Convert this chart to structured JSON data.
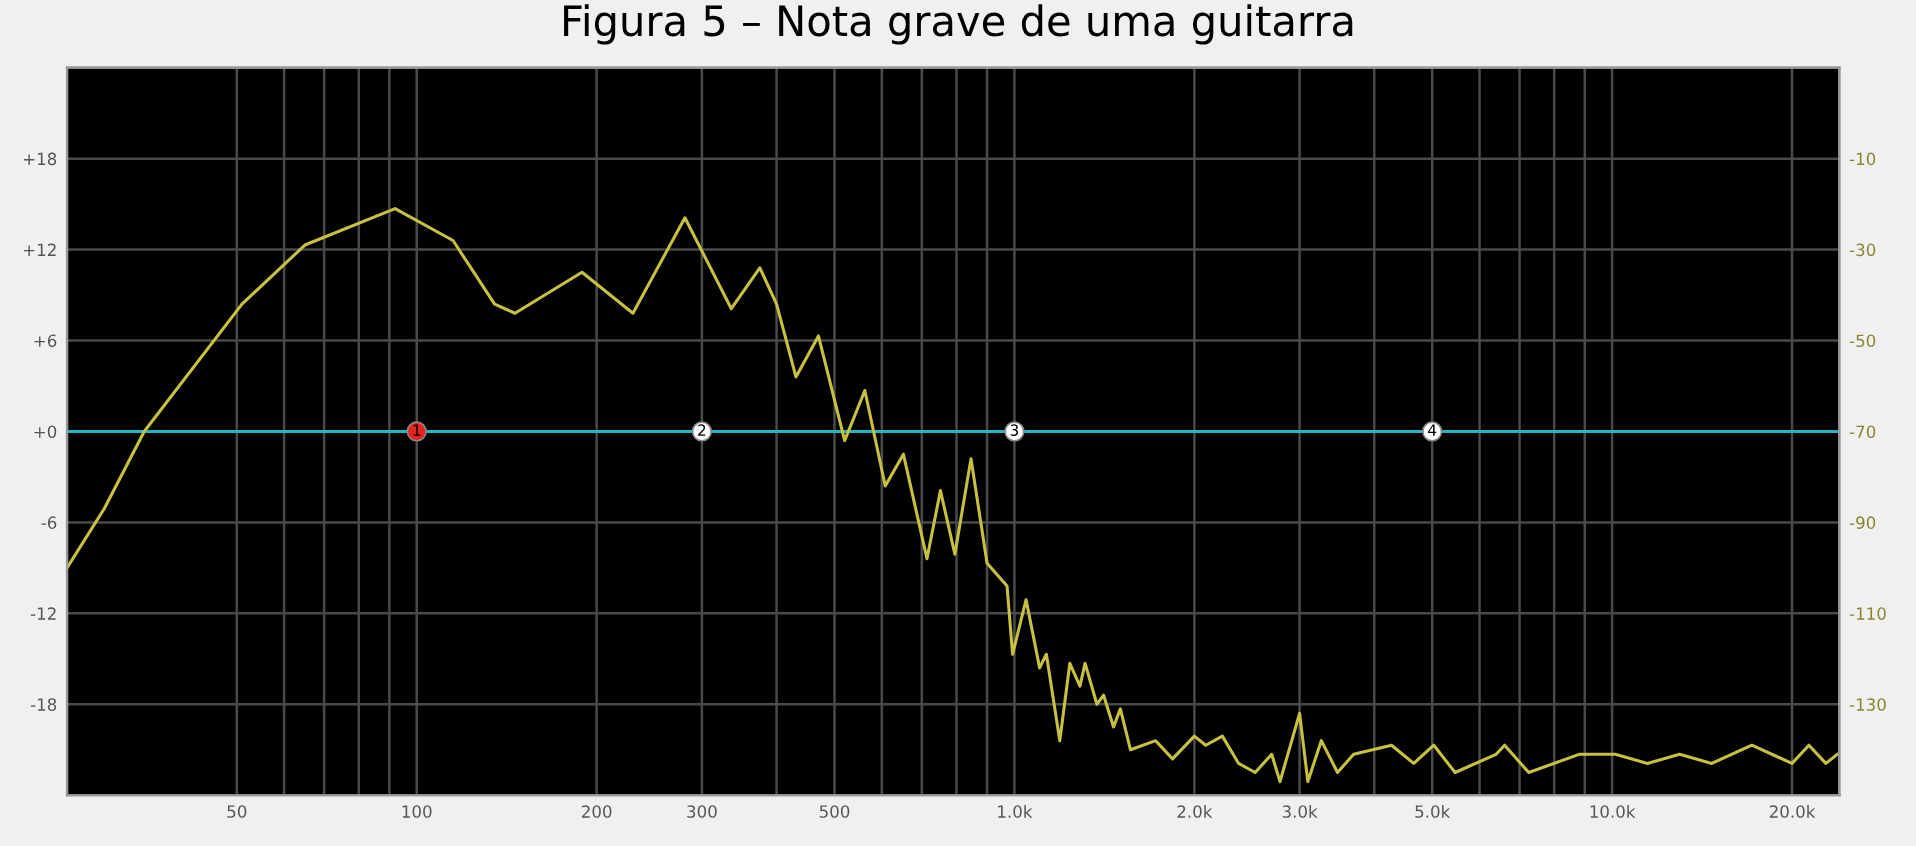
{
  "chart_data": {
    "type": "line",
    "title": "Figura 5 – Nota grave de uma guitarra",
    "log": "x",
    "grid": true,
    "annotations": [
      {
        "text": "1",
        "x": 100,
        "y": 0
      },
      {
        "text": "2",
        "x": 300,
        "y": 0
      },
      {
        "text": "3",
        "x": 1000,
        "y": 0
      },
      {
        "text": "4",
        "x": 5000,
        "y": 0
      }
    ],
    "xlim": [
      26,
      24000
    ],
    "xticks": [
      {
        "value": 50,
        "label": "50"
      },
      {
        "value": 60,
        "label": null
      },
      {
        "value": 70,
        "label": null
      },
      {
        "value": 80,
        "label": null
      },
      {
        "value": 90,
        "label": null
      },
      {
        "value": 100,
        "label": "100"
      },
      {
        "value": 200,
        "label": "200"
      },
      {
        "value": 300,
        "label": "300"
      },
      {
        "value": 400,
        "label": null
      },
      {
        "value": 500,
        "label": "500"
      },
      {
        "value": 600,
        "label": null
      },
      {
        "value": 700,
        "label": null
      },
      {
        "value": 800,
        "label": null
      },
      {
        "value": 900,
        "label": null
      },
      {
        "value": 1000,
        "label": "1.0k"
      },
      {
        "value": 2000,
        "label": "2.0k"
      },
      {
        "value": 3000,
        "label": "3.0k"
      },
      {
        "value": 4000,
        "label": null
      },
      {
        "value": 5000,
        "label": "5.0k"
      },
      {
        "value": 6000,
        "label": null
      },
      {
        "value": 7000,
        "label": null
      },
      {
        "value": 8000,
        "label": null
      },
      {
        "value": 9000,
        "label": null
      },
      {
        "value": 10000,
        "label": "10.0k"
      },
      {
        "value": 20000,
        "label": "20.0k"
      }
    ],
    "ylim": [
      -24,
      24
    ],
    "yticks": [
      {
        "value": 18,
        "label": "+18"
      },
      {
        "value": 12,
        "label": "+12"
      },
      {
        "value": 6,
        "label": "+6"
      },
      {
        "value": 0,
        "label": "+0"
      },
      -6,
      -12,
      -18
    ],
    "y2lim": [
      -150,
      10
    ],
    "y2ticks": [
      -10,
      -30,
      -50,
      -70,
      -90,
      -110,
      -130
    ],
    "series": [
      {
        "type": "line",
        "axis": "y2",
        "color": "#c8c040",
        "marker": "none",
        "x": [
          26,
          30,
          35,
          51,
          65,
          92,
          115,
          135,
          146,
          189,
          230,
          281,
          336,
          375,
          400,
          431,
          470,
          520,
          562,
          608,
          652,
          714,
          752,
          795,
          846,
          900,
          972,
          993,
          1046,
          1102,
          1131,
          1191,
          1238,
          1287,
          1313,
          1374,
          1410,
          1465,
          1504,
          1564,
          1723,
          1839,
          2000,
          2090,
          2228,
          2372,
          2528,
          2694,
          2782,
          3000,
          3097,
          3262,
          3472,
          3694,
          4275,
          4657,
          5031,
          5461,
          6395,
          6609,
          7254,
          8804,
          10124,
          11458,
          12968,
          14677,
          17134,
          20000,
          21343,
          22782,
          23800
        ],
        "values": [
          -100,
          -87,
          -70,
          -42,
          -29,
          -21,
          -28,
          -42,
          -44,
          -35,
          -44,
          -23,
          -43,
          -34,
          -42,
          -58,
          -49,
          -72,
          -61,
          -82,
          -75,
          -98,
          -83,
          -97,
          -76,
          -99,
          -104,
          -119,
          -107,
          -122,
          -119,
          -138,
          -121,
          -126,
          -121,
          -130,
          -128,
          -135,
          -131,
          -140,
          -138,
          -142,
          -137,
          -139,
          -137,
          -143,
          -145,
          -141,
          -147,
          -132,
          -147,
          -138,
          -145,
          -141,
          -139,
          -143,
          -139,
          -145,
          -141,
          -139,
          -145,
          -141,
          -141,
          -143,
          -141,
          -143,
          -139,
          -143,
          -139,
          -143,
          -141
        ]
      },
      {
        "color": "#20b8c4",
        "marker": "none",
        "x": [
          26,
          24000
        ],
        "values": [
          0,
          0
        ]
      },
      {
        "type": "scatter",
        "marker": "circle",
        "x": [
          100,
          300,
          1000,
          5000
        ],
        "values": [
          0,
          0,
          0,
          0
        ],
        "colors": [
          "#e8231e",
          "#ffffff",
          "#ffffff",
          "#ffffff"
        ]
      }
    ]
  }
}
